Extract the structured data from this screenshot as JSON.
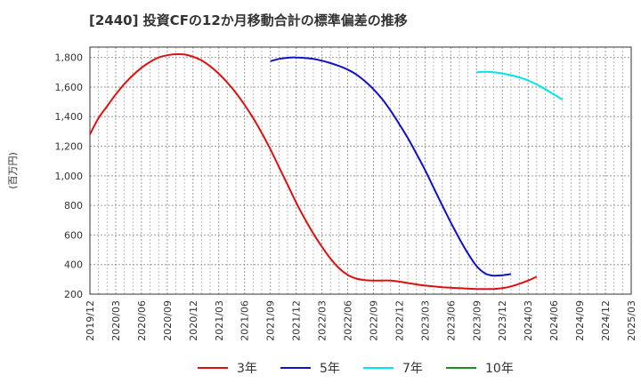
{
  "title": "[2440]  投資CFの12か月移動合計の標準偏差の推移",
  "chart_data": {
    "type": "line",
    "title": "[2440]  投資CFの12か月移動合計の標準偏差の推移",
    "xlabel": "",
    "ylabel": "(百万円)",
    "ylim": [
      200,
      1870
    ],
    "yticks": [
      "200",
      "400",
      "600",
      "800",
      "1,000",
      "1,200",
      "1,400",
      "1,600",
      "1,800"
    ],
    "ytick_values": [
      200,
      400,
      600,
      800,
      1000,
      1200,
      1400,
      1600,
      1800
    ],
    "x_categories": [
      "2019/12",
      "2020/03",
      "2020/06",
      "2020/09",
      "2020/12",
      "2021/03",
      "2021/06",
      "2021/09",
      "2021/12",
      "2022/03",
      "2022/06",
      "2022/09",
      "2022/12",
      "2023/03",
      "2023/06",
      "2023/09",
      "2023/12",
      "2024/03",
      "2024/06",
      "2024/09",
      "2024/12",
      "2025/03"
    ],
    "grid": true,
    "legend_position": "bottom",
    "series": [
      {
        "name": "3年",
        "color": "#dd1111",
        "points": [
          [
            "2019/12",
            1280
          ],
          [
            "2020/01",
            1390
          ],
          [
            "2020/02",
            1470
          ],
          [
            "2020/03",
            1550
          ],
          [
            "2020/04",
            1620
          ],
          [
            "2020/05",
            1680
          ],
          [
            "2020/06",
            1730
          ],
          [
            "2020/07",
            1770
          ],
          [
            "2020/08",
            1800
          ],
          [
            "2020/09",
            1815
          ],
          [
            "2020/10",
            1822
          ],
          [
            "2020/11",
            1820
          ],
          [
            "2020/12",
            1805
          ],
          [
            "2021/01",
            1780
          ],
          [
            "2021/02",
            1740
          ],
          [
            "2021/03",
            1690
          ],
          [
            "2021/04",
            1630
          ],
          [
            "2021/05",
            1560
          ],
          [
            "2021/06",
            1480
          ],
          [
            "2021/07",
            1390
          ],
          [
            "2021/08",
            1290
          ],
          [
            "2021/09",
            1180
          ],
          [
            "2021/10",
            1060
          ],
          [
            "2021/11",
            940
          ],
          [
            "2021/12",
            820
          ],
          [
            "2022/01",
            710
          ],
          [
            "2022/02",
            610
          ],
          [
            "2022/03",
            520
          ],
          [
            "2022/04",
            440
          ],
          [
            "2022/05",
            375
          ],
          [
            "2022/06",
            330
          ],
          [
            "2022/07",
            305
          ],
          [
            "2022/08",
            295
          ],
          [
            "2022/09",
            292
          ],
          [
            "2022/10",
            292
          ],
          [
            "2022/11",
            292
          ],
          [
            "2022/12",
            285
          ],
          [
            "2023/01",
            275
          ],
          [
            "2023/02",
            266
          ],
          [
            "2023/03",
            258
          ],
          [
            "2023/04",
            252
          ],
          [
            "2023/05",
            247
          ],
          [
            "2023/06",
            243
          ],
          [
            "2023/07",
            240
          ],
          [
            "2023/08",
            237
          ],
          [
            "2023/09",
            235
          ],
          [
            "2023/10",
            234
          ],
          [
            "2023/11",
            235
          ],
          [
            "2023/12",
            240
          ],
          [
            "2024/01",
            252
          ],
          [
            "2024/02",
            270
          ],
          [
            "2024/03",
            292
          ],
          [
            "2024/04",
            318
          ]
        ]
      },
      {
        "name": "5年",
        "color": "#1111cc",
        "points": [
          [
            "2021/09",
            1775
          ],
          [
            "2021/10",
            1790
          ],
          [
            "2021/11",
            1798
          ],
          [
            "2021/12",
            1800
          ],
          [
            "2022/01",
            1797
          ],
          [
            "2022/02",
            1790
          ],
          [
            "2022/03",
            1778
          ],
          [
            "2022/04",
            1762
          ],
          [
            "2022/05",
            1742
          ],
          [
            "2022/06",
            1718
          ],
          [
            "2022/07",
            1685
          ],
          [
            "2022/08",
            1640
          ],
          [
            "2022/09",
            1585
          ],
          [
            "2022/10",
            1520
          ],
          [
            "2022/11",
            1440
          ],
          [
            "2022/12",
            1350
          ],
          [
            "2023/01",
            1255
          ],
          [
            "2023/02",
            1150
          ],
          [
            "2023/03",
            1040
          ],
          [
            "2023/04",
            920
          ],
          [
            "2023/05",
            800
          ],
          [
            "2023/06",
            685
          ],
          [
            "2023/07",
            575
          ],
          [
            "2023/08",
            475
          ],
          [
            "2023/09",
            390
          ],
          [
            "2023/10",
            340
          ],
          [
            "2023/11",
            325
          ],
          [
            "2023/12",
            328
          ],
          [
            "2024/01",
            336
          ]
        ]
      },
      {
        "name": "7年",
        "color": "#00e5ee",
        "points": [
          [
            "2023/09",
            1700
          ],
          [
            "2023/10",
            1703
          ],
          [
            "2023/11",
            1700
          ],
          [
            "2023/12",
            1692
          ],
          [
            "2024/01",
            1680
          ],
          [
            "2024/02",
            1665
          ],
          [
            "2024/03",
            1645
          ],
          [
            "2024/04",
            1618
          ],
          [
            "2024/05",
            1585
          ],
          [
            "2024/06",
            1550
          ],
          [
            "2024/07",
            1515
          ]
        ]
      },
      {
        "name": "10年",
        "color": "#228b22",
        "points": []
      }
    ]
  }
}
